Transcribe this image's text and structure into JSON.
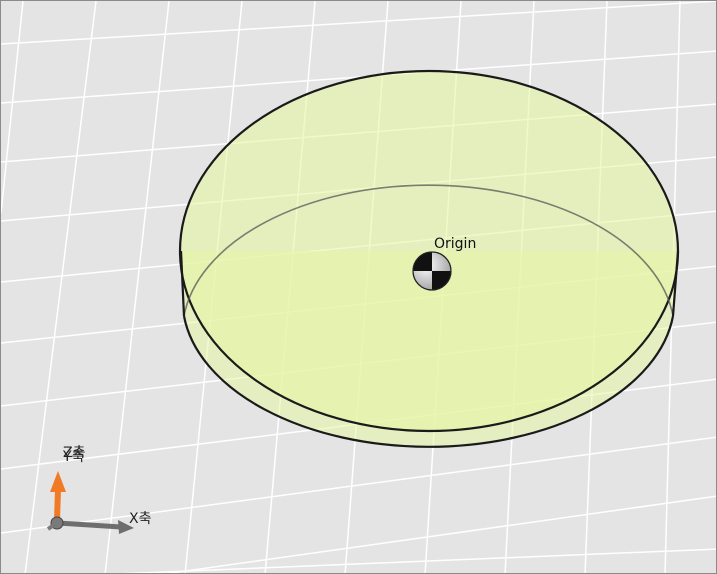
{
  "scene": {
    "origin_label": "Origin",
    "axes": {
      "x_label": "X축",
      "y_label": "Y축",
      "z_label": "Z축"
    }
  },
  "colors": {
    "background": "#e4e4e4",
    "grid_line": "#ffffff",
    "cylinder_fill": "#e6f5a3",
    "cylinder_edge": "#1a1a1a",
    "axis_x": "#6e6e6e",
    "axis_z": "#f07a25",
    "axis_y": "#7a7a7a"
  },
  "icons": {
    "origin": "origin-marker-icon",
    "triad": "axis-triad-icon"
  }
}
